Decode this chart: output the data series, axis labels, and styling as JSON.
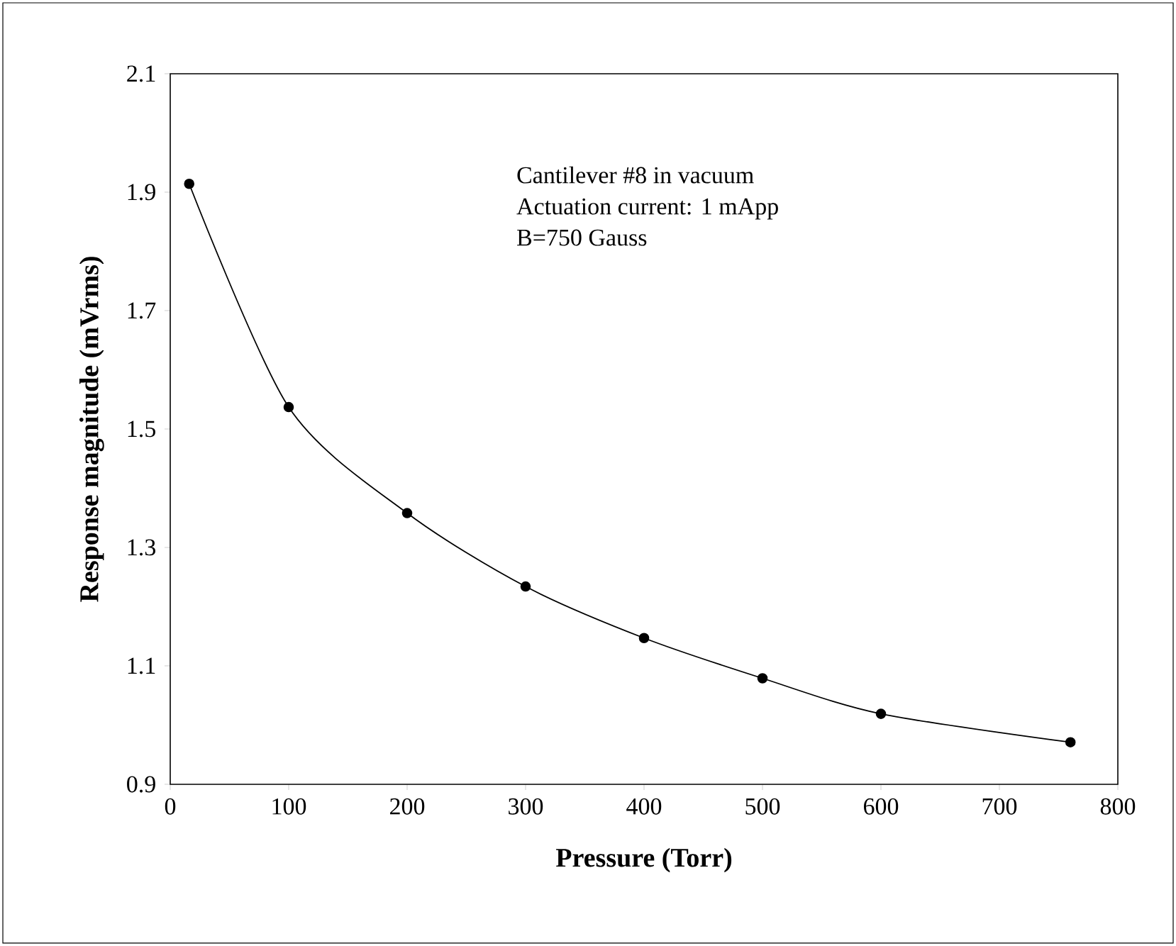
{
  "chart_data": {
    "type": "line",
    "xlabel": "Pressure  (Torr)",
    "ylabel": "Response magnitude (mVrms)",
    "annotations": [
      "Cantilever #8 in vacuum",
      "Actuation current:  1 mApp",
      "B=750 Gauss"
    ],
    "x": [
      16,
      100,
      200,
      300,
      400,
      500,
      600,
      760
    ],
    "series": [
      {
        "color": "#000000",
        "values": [
          1.914,
          1.537,
          1.358,
          1.234,
          1.147,
          1.079,
          1.019,
          0.971
        ]
      }
    ],
    "marker": "circle",
    "line_style": "solid",
    "grid": false,
    "xlim": [
      0,
      800
    ],
    "xticks": [
      0,
      100,
      200,
      300,
      400,
      500,
      600,
      700,
      800
    ],
    "ylim": [
      0.9,
      2.1
    ],
    "yticks": [
      0.9,
      1.1,
      1.3,
      1.5,
      1.7,
      1.9,
      2.1
    ]
  }
}
